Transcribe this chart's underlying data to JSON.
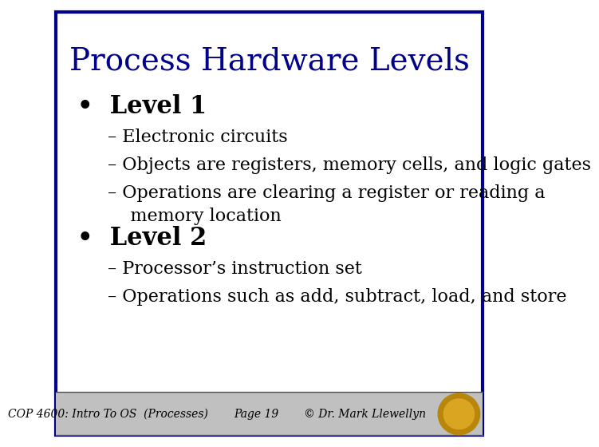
{
  "title": "Process Hardware Levels",
  "title_color": "#00008B",
  "title_fontsize": 28,
  "bg_color": "#FFFFFF",
  "border_color": "#00008B",
  "border_linewidth": 3,
  "bullet1_header": "Level 1",
  "bullet1_subs": [
    "– Electronic circuits",
    "– Objects are registers, memory cells, and logic gates",
    "– Operations are clearing a register or reading a\n    memory location"
  ],
  "bullet2_header": "Level 2",
  "bullet2_subs": [
    "– Processor’s instruction set",
    "– Operations such as add, subtract, load, and store"
  ],
  "footer_left": "COP 4600: Intro To OS  (Processes)",
  "footer_center": "Page 19",
  "footer_right": "© Dr. Mark Llewellyn",
  "footer_bg": "#C0C0C0",
  "footer_fontsize": 10,
  "bullet_header_fontsize": 22,
  "bullet_sub_fontsize": 16,
  "text_color": "#000000"
}
